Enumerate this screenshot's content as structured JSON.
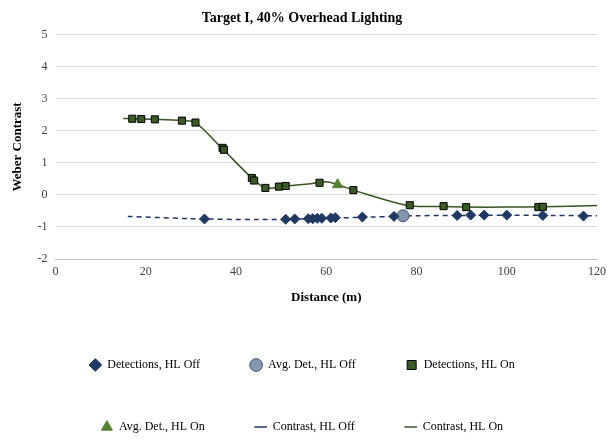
{
  "chart_data": {
    "type": "scatter",
    "title": "Target I, 40% Overhead Lighting",
    "x_label": "Distance (m)",
    "y_label": "Weber Contrast",
    "xlim": [
      0,
      120
    ],
    "xticks": [
      0,
      20,
      40,
      60,
      80,
      100,
      120
    ],
    "ylim": [
      -2,
      5
    ],
    "yticks": [
      -2,
      -1,
      0,
      1,
      2,
      3,
      4,
      5
    ],
    "grid": "y",
    "legend": "bottom",
    "series": [
      {
        "name": "Detections, HL Off",
        "type": "scatter",
        "marker": "diamond",
        "color": "#1f3864",
        "x": [
          33,
          51,
          53,
          56,
          57,
          58,
          59,
          61,
          62,
          68,
          75,
          89,
          92,
          95,
          100,
          108,
          117
        ],
        "values": [
          -0.75,
          -0.76,
          -0.75,
          -0.74,
          -0.74,
          -0.73,
          -0.73,
          -0.72,
          -0.71,
          -0.69,
          -0.67,
          -0.64,
          -0.63,
          -0.63,
          -0.63,
          -0.64,
          -0.66
        ]
      },
      {
        "name": "Contrast, HL Off",
        "type": "line",
        "line_style": "dashed",
        "color": "#1f3864",
        "x": [
          16,
          30,
          45,
          55,
          62,
          70,
          80,
          90,
          100,
          110,
          120
        ],
        "values": [
          -0.67,
          -0.74,
          -0.77,
          -0.75,
          -0.72,
          -0.69,
          -0.65,
          -0.64,
          -0.63,
          -0.64,
          -0.65
        ]
      },
      {
        "name": "Avg. Det., HL Off",
        "type": "scatter",
        "marker": "circle",
        "color": "#8497b0",
        "x": [
          77
        ],
        "values": [
          -0.65
        ]
      },
      {
        "name": "Detections, HL On",
        "type": "scatter",
        "marker": "square",
        "color": "#3a5a28",
        "x": [
          17,
          19,
          22,
          28,
          31,
          37,
          37.3,
          43.5,
          44,
          46.5,
          49.5,
          51,
          58.5,
          66,
          78.5,
          86,
          91,
          107,
          108
        ],
        "values": [
          2.38,
          2.37,
          2.36,
          2.32,
          2.26,
          1.47,
          1.41,
          0.53,
          0.45,
          0.22,
          0.26,
          0.28,
          0.38,
          0.15,
          -0.32,
          -0.35,
          -0.38,
          -0.38,
          -0.37
        ]
      },
      {
        "name": "Contrast, HL On",
        "type": "line",
        "line_style": "solid",
        "color": "#375623",
        "x": [
          15,
          17,
          22,
          28,
          31,
          37,
          43.5,
          46.5,
          51,
          56,
          60,
          63,
          66,
          78,
          85,
          91,
          100,
          108,
          120
        ],
        "values": [
          2.39,
          2.38,
          2.36,
          2.32,
          2.26,
          1.44,
          0.53,
          0.22,
          0.28,
          0.34,
          0.41,
          0.3,
          0.15,
          -0.33,
          -0.36,
          -0.38,
          -0.38,
          -0.37,
          -0.33
        ]
      },
      {
        "name": "Avg. Det., HL On",
        "type": "scatter",
        "marker": "triangle",
        "color": "#548235",
        "x": [
          62.5
        ],
        "values": [
          0.32
        ]
      }
    ]
  }
}
